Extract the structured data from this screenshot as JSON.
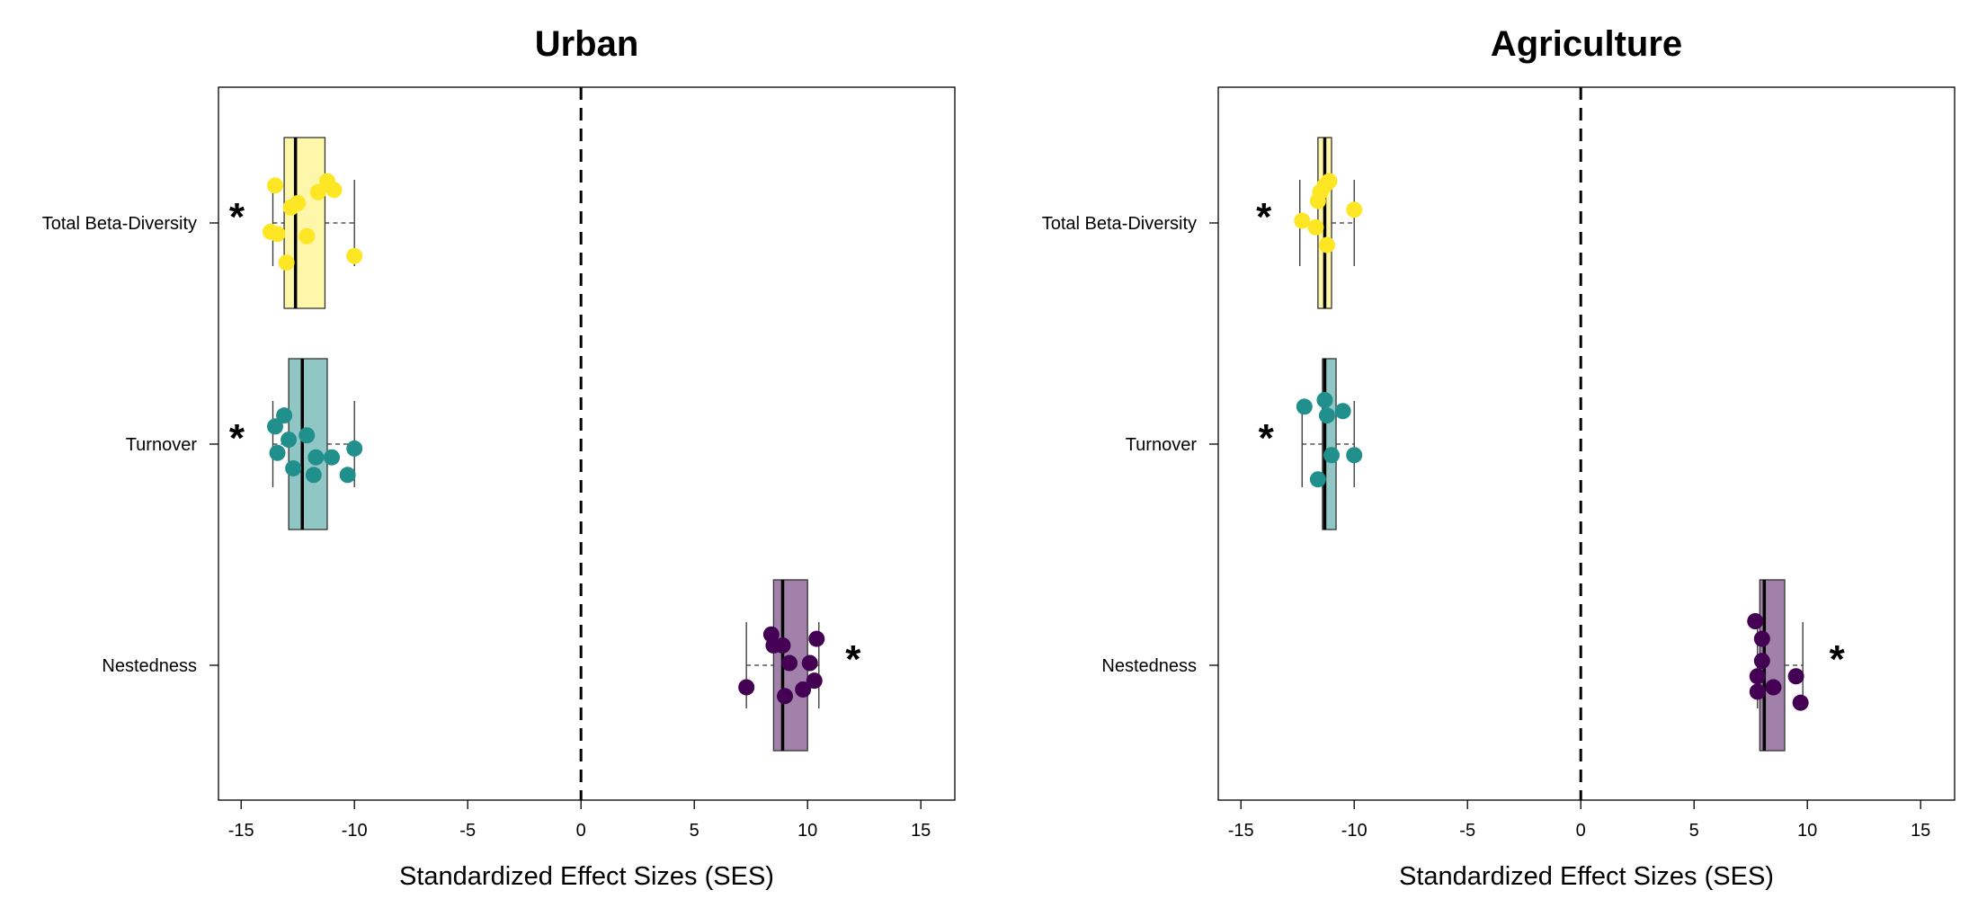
{
  "chart_data": [
    {
      "type": "boxplot",
      "title": "Urban",
      "xlabel": "Standardized Effect Sizes (SES)",
      "ylabel": "",
      "xlim": [
        -16,
        16.5
      ],
      "xticks": [
        -15,
        -10,
        -5,
        0,
        5,
        10,
        15
      ],
      "reference_line_x": 0,
      "categories": [
        "Total Beta-Diversity",
        "Turnover",
        "Nestedness"
      ],
      "series": [
        {
          "category": "Total Beta-Diversity",
          "color": "#FDE725",
          "box_fill": "#FEF6A8",
          "box": {
            "min": -13.6,
            "q1": -13.1,
            "median": -12.6,
            "q3": -11.3,
            "max": -10.0
          },
          "points": [
            {
              "x": -13.5,
              "y_offset": 0.17
            },
            {
              "x": -10.9,
              "y_offset": 0.15
            },
            {
              "x": -11.6,
              "y_offset": 0.14
            },
            {
              "x": -11.2,
              "y_offset": 0.19
            },
            {
              "x": -12.5,
              "y_offset": 0.09
            },
            {
              "x": -12.8,
              "y_offset": 0.07
            },
            {
              "x": -13.7,
              "y_offset": -0.04
            },
            {
              "x": -13.4,
              "y_offset": -0.05
            },
            {
              "x": -12.1,
              "y_offset": -0.06
            },
            {
              "x": -10.0,
              "y_offset": -0.15
            },
            {
              "x": -13.0,
              "y_offset": -0.18
            }
          ],
          "significant": true,
          "star_side": "left"
        },
        {
          "category": "Turnover",
          "color": "#21908C",
          "box_fill": "#90C7C5",
          "box": {
            "min": -13.6,
            "q1": -12.9,
            "median": -12.3,
            "q3": -11.2,
            "max": -10.0
          },
          "points": [
            {
              "x": -13.1,
              "y_offset": 0.13
            },
            {
              "x": -13.5,
              "y_offset": 0.08
            },
            {
              "x": -12.9,
              "y_offset": 0.02
            },
            {
              "x": -12.1,
              "y_offset": 0.04
            },
            {
              "x": -13.4,
              "y_offset": -0.04
            },
            {
              "x": -11.7,
              "y_offset": -0.06
            },
            {
              "x": -11.0,
              "y_offset": -0.06
            },
            {
              "x": -12.7,
              "y_offset": -0.11
            },
            {
              "x": -11.8,
              "y_offset": -0.14
            },
            {
              "x": -10.0,
              "y_offset": -0.02
            },
            {
              "x": -10.3,
              "y_offset": -0.14
            }
          ],
          "significant": true,
          "star_side": "left"
        },
        {
          "category": "Nestedness",
          "color": "#440154",
          "box_fill": "#A181A9",
          "box": {
            "min": 7.3,
            "q1": 8.5,
            "median": 8.9,
            "q3": 10.0,
            "max": 10.5
          },
          "points": [
            {
              "x": 8.4,
              "y_offset": 0.14
            },
            {
              "x": 10.4,
              "y_offset": 0.12
            },
            {
              "x": 8.5,
              "y_offset": 0.09
            },
            {
              "x": 8.9,
              "y_offset": 0.09
            },
            {
              "x": 9.2,
              "y_offset": 0.01
            },
            {
              "x": 10.1,
              "y_offset": 0.01
            },
            {
              "x": 10.3,
              "y_offset": -0.07
            },
            {
              "x": 9.8,
              "y_offset": -0.11
            },
            {
              "x": 7.3,
              "y_offset": -0.1
            },
            {
              "x": 9.0,
              "y_offset": -0.14
            }
          ],
          "significant": true,
          "star_side": "right"
        }
      ]
    },
    {
      "type": "boxplot",
      "title": "Agriculture",
      "xlabel": "Standardized Effect Sizes (SES)",
      "ylabel": "",
      "xlim": [
        -16,
        16.5
      ],
      "xticks": [
        -15,
        -10,
        -5,
        0,
        5,
        10,
        15
      ],
      "reference_line_x": 0,
      "categories": [
        "Total Beta-Diversity",
        "Turnover",
        "Nestedness"
      ],
      "series": [
        {
          "category": "Total Beta-Diversity",
          "color": "#FDE725",
          "box_fill": "#FEF6A8",
          "box": {
            "min": -12.4,
            "q1": -11.6,
            "median": -11.3,
            "q3": -11.0,
            "max": -10.0
          },
          "points": [
            {
              "x": -11.1,
              "y_offset": 0.19
            },
            {
              "x": -11.3,
              "y_offset": 0.17
            },
            {
              "x": -11.5,
              "y_offset": 0.14
            },
            {
              "x": -11.6,
              "y_offset": 0.1
            },
            {
              "x": -10.0,
              "y_offset": 0.06
            },
            {
              "x": -12.3,
              "y_offset": 0.01
            },
            {
              "x": -11.7,
              "y_offset": -0.02
            },
            {
              "x": -11.2,
              "y_offset": -0.1
            }
          ],
          "significant": true,
          "star_side": "left"
        },
        {
          "category": "Turnover",
          "color": "#21908C",
          "box_fill": "#90C7C5",
          "box": {
            "min": -12.3,
            "q1": -11.4,
            "median": -11.3,
            "q3": -10.8,
            "max": -10.0
          },
          "points": [
            {
              "x": -11.3,
              "y_offset": 0.2
            },
            {
              "x": -12.2,
              "y_offset": 0.17
            },
            {
              "x": -10.5,
              "y_offset": 0.15
            },
            {
              "x": -11.2,
              "y_offset": 0.13
            },
            {
              "x": -11.0,
              "y_offset": -0.05
            },
            {
              "x": -10.0,
              "y_offset": -0.05
            },
            {
              "x": -11.6,
              "y_offset": -0.16
            }
          ],
          "significant": true,
          "star_side": "left"
        },
        {
          "category": "Nestedness",
          "color": "#440154",
          "box_fill": "#A181A9",
          "box": {
            "min": 7.8,
            "q1": 7.9,
            "median": 8.1,
            "q3": 9.0,
            "max": 9.8
          },
          "points": [
            {
              "x": 7.7,
              "y_offset": 0.2
            },
            {
              "x": 8.0,
              "y_offset": 0.12
            },
            {
              "x": 8.0,
              "y_offset": 0.02
            },
            {
              "x": 7.8,
              "y_offset": -0.05
            },
            {
              "x": 9.5,
              "y_offset": -0.05
            },
            {
              "x": 8.5,
              "y_offset": -0.1
            },
            {
              "x": 7.8,
              "y_offset": -0.12
            },
            {
              "x": 9.7,
              "y_offset": -0.17
            }
          ],
          "significant": true,
          "star_side": "right"
        }
      ]
    }
  ],
  "significance_marker": "*"
}
